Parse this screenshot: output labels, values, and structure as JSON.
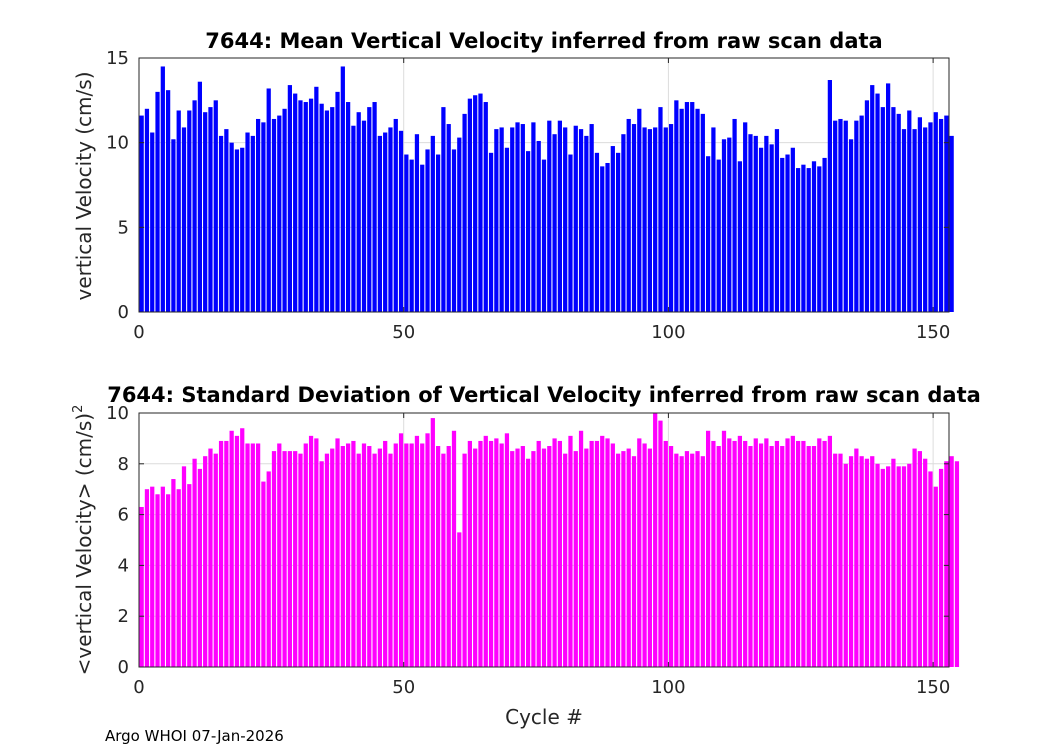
{
  "footer": "Argo WHOI 07-Jan-2026",
  "chart_data": [
    {
      "type": "bar",
      "title": "7644: Mean Vertical Velocity inferred from raw scan data",
      "xlabel": "",
      "ylabel": "vertical Velocity (cm/s)",
      "xlim": [
        0,
        153
      ],
      "ylim": [
        0,
        15
      ],
      "xticks": [
        0,
        50,
        100,
        150
      ],
      "yticks": [
        0,
        5,
        10,
        15
      ],
      "grid": true,
      "color": "#0000ff",
      "x_start": 0,
      "values": [
        11.6,
        12.0,
        10.6,
        13.0,
        14.5,
        13.1,
        10.2,
        11.9,
        10.9,
        11.9,
        12.5,
        13.6,
        11.8,
        12.1,
        12.5,
        10.4,
        10.8,
        10.0,
        9.6,
        9.7,
        10.6,
        10.4,
        11.4,
        11.2,
        13.2,
        11.4,
        11.6,
        12.0,
        13.4,
        12.9,
        12.5,
        12.4,
        12.6,
        13.3,
        12.3,
        11.9,
        12.1,
        13.0,
        14.5,
        12.4,
        11.0,
        11.8,
        11.3,
        12.1,
        12.4,
        10.4,
        10.6,
        10.9,
        11.4,
        10.7,
        9.3,
        9.0,
        10.5,
        8.7,
        9.6,
        10.4,
        9.3,
        12.1,
        11.1,
        9.6,
        10.3,
        11.7,
        12.6,
        12.8,
        12.9,
        12.4,
        9.4,
        10.8,
        10.9,
        9.7,
        10.9,
        11.2,
        11.1,
        9.5,
        11.2,
        10.1,
        9.0,
        11.3,
        10.5,
        11.3,
        10.9,
        9.3,
        11.0,
        10.8,
        10.4,
        11.1,
        9.4,
        8.6,
        8.8,
        9.8,
        9.4,
        10.5,
        11.4,
        11.1,
        12.0,
        10.9,
        10.8,
        10.9,
        12.1,
        10.9,
        11.1,
        12.5,
        12.0,
        12.4,
        12.4,
        12.0,
        11.7,
        9.2,
        10.9,
        9.0,
        10.2,
        10.3,
        11.4,
        8.9,
        11.2,
        10.5,
        10.4,
        9.7,
        10.4,
        9.9,
        10.8,
        9.1,
        9.3,
        9.7,
        8.5,
        8.7,
        8.5,
        8.9,
        8.6,
        9.1,
        13.7,
        11.3,
        11.4,
        11.3,
        10.2,
        11.3,
        11.6,
        12.5,
        13.4,
        12.9,
        12.1,
        13.5,
        12.1,
        11.7,
        10.8,
        11.9,
        10.8,
        11.5,
        10.9,
        11.2,
        11.8,
        11.4,
        11.6,
        10.4
      ]
    },
    {
      "type": "bar",
      "title": "7644: Standard Deviation of Vertical Velocity inferred from raw scan data",
      "xlabel": "Cycle #",
      "ylabel": "<vertical Velocity> (cm/s)",
      "ylabel_superscript": "2",
      "xlim": [
        0,
        153
      ],
      "ylim": [
        0,
        10
      ],
      "xticks": [
        0,
        50,
        100,
        150
      ],
      "yticks": [
        0,
        2,
        4,
        6,
        8,
        10
      ],
      "grid": true,
      "color": "#ff00ff",
      "x_start": 0,
      "values": [
        6.3,
        7.0,
        7.1,
        6.8,
        7.1,
        6.8,
        7.4,
        7.0,
        7.9,
        7.2,
        8.2,
        7.8,
        8.3,
        8.6,
        8.4,
        8.9,
        8.9,
        9.3,
        9.1,
        9.4,
        8.8,
        8.8,
        8.8,
        7.3,
        7.7,
        8.5,
        8.8,
        8.5,
        8.5,
        8.5,
        8.4,
        8.8,
        9.1,
        9.0,
        8.1,
        8.4,
        8.6,
        9.0,
        8.7,
        8.8,
        8.9,
        8.4,
        8.8,
        8.7,
        8.4,
        8.6,
        8.9,
        8.4,
        8.8,
        9.2,
        8.8,
        8.8,
        9.1,
        8.8,
        9.2,
        9.8,
        8.7,
        8.4,
        8.7,
        9.3,
        5.3,
        8.4,
        8.9,
        8.6,
        8.9,
        9.1,
        8.9,
        9.0,
        8.8,
        9.2,
        8.5,
        8.6,
        8.7,
        8.2,
        8.5,
        8.9,
        8.6,
        8.7,
        9.0,
        8.9,
        8.4,
        9.1,
        8.5,
        9.3,
        8.6,
        8.9,
        8.9,
        9.1,
        9.0,
        8.8,
        8.4,
        8.5,
        8.6,
        8.3,
        9.0,
        8.8,
        8.6,
        10.0,
        9.7,
        8.9,
        8.7,
        8.4,
        8.3,
        8.5,
        8.4,
        8.5,
        8.3,
        9.3,
        8.9,
        8.7,
        9.3,
        9.0,
        8.9,
        9.1,
        8.9,
        8.7,
        9.0,
        8.8,
        9.0,
        8.7,
        8.9,
        8.7,
        9.0,
        9.1,
        8.9,
        8.9,
        8.7,
        8.7,
        9.0,
        8.9,
        9.1,
        8.4,
        8.4,
        8.0,
        8.3,
        8.6,
        8.3,
        8.2,
        8.3,
        8.0,
        7.8,
        7.9,
        8.2,
        7.9,
        7.9,
        8.0,
        8.6,
        8.5,
        8.2,
        7.7,
        7.1,
        7.8,
        8.1,
        8.3,
        8.1
      ]
    }
  ]
}
